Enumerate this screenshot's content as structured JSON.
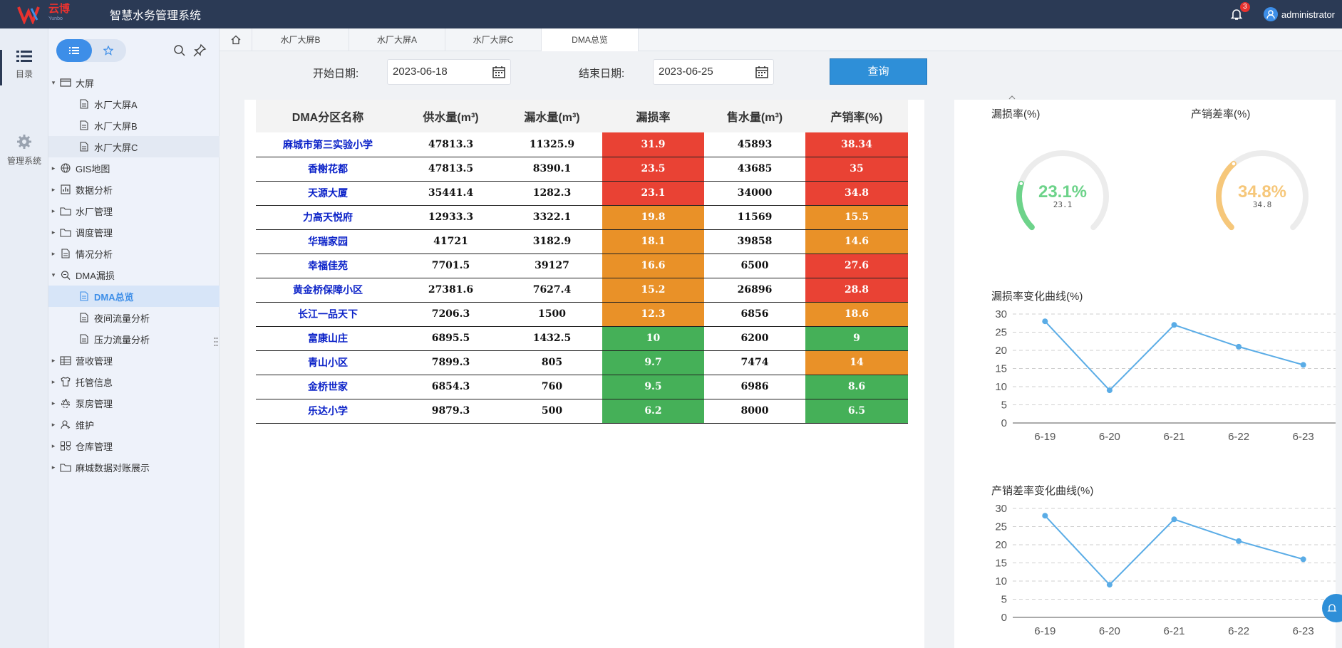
{
  "app": {
    "logo_text": "云博",
    "logo_sub": "Yunbo",
    "title": "智慧水务管理系统"
  },
  "topbar": {
    "notification_count": "3",
    "username": "administrator"
  },
  "rail": [
    {
      "label": "目录",
      "icon": "list-icon"
    },
    {
      "label": "管理系统",
      "icon": "gear-icon"
    }
  ],
  "sidebar": {
    "tree": [
      {
        "label": "大屏",
        "depth": 0,
        "caret": "▾",
        "icon": "screen-icon"
      },
      {
        "label": "水厂大屏A",
        "depth": 1,
        "caret": "",
        "icon": "doc-icon"
      },
      {
        "label": "水厂大屏B",
        "depth": 1,
        "caret": "",
        "icon": "doc-icon"
      },
      {
        "label": "水厂大屏C",
        "depth": 1,
        "caret": "",
        "icon": "doc-icon"
      },
      {
        "label": "GIS地图",
        "depth": 0,
        "caret": "▸",
        "icon": "globe-icon"
      },
      {
        "label": "数据分析",
        "depth": 0,
        "caret": "▸",
        "icon": "chart-icon"
      },
      {
        "label": "水厂管理",
        "depth": 0,
        "caret": "▸",
        "icon": "folder-icon"
      },
      {
        "label": "调度管理",
        "depth": 0,
        "caret": "▸",
        "icon": "folder-icon"
      },
      {
        "label": "情况分析",
        "depth": 0,
        "caret": "▸",
        "icon": "doc-icon"
      },
      {
        "label": "DMA漏损",
        "depth": 0,
        "caret": "▾",
        "icon": "search-doc-icon"
      },
      {
        "label": "DMA总览",
        "depth": 1,
        "caret": "",
        "icon": "doc-icon"
      },
      {
        "label": "夜间流量分析",
        "depth": 1,
        "caret": "",
        "icon": "doc-icon"
      },
      {
        "label": "压力流量分析",
        "depth": 1,
        "caret": "",
        "icon": "doc-icon"
      },
      {
        "label": "营收管理",
        "depth": 0,
        "caret": "▸",
        "icon": "table-icon"
      },
      {
        "label": "托管信息",
        "depth": 0,
        "caret": "▸",
        "icon": "shirt-icon"
      },
      {
        "label": "泵房管理",
        "depth": 0,
        "caret": "▸",
        "icon": "recycle-icon"
      },
      {
        "label": "维护",
        "depth": 0,
        "caret": "▸",
        "icon": "user-icon"
      },
      {
        "label": "仓库管理",
        "depth": 0,
        "caret": "▸",
        "icon": "grid-icon"
      },
      {
        "label": "麻城数据对账展示",
        "depth": 0,
        "caret": "▸",
        "icon": "folder-icon"
      }
    ]
  },
  "tabs": [
    "水厂大屏B",
    "水厂大屏A",
    "水厂大屏C",
    "DMA总览"
  ],
  "filter": {
    "start_label": "开始日期:",
    "start_value": "2023-06-18",
    "end_label": "结束日期:",
    "end_value": "2023-06-25",
    "query_label": "查询"
  },
  "table": {
    "headers": [
      "DMA分区名称",
      "供水量(m³)",
      "漏水量(m³)",
      "漏损率",
      "售水量(m³)",
      "产销率(%)"
    ],
    "rows": [
      [
        "麻城市第三实验小学",
        "47813.3",
        "11325.9",
        "31.9",
        "45893",
        "38.34"
      ],
      [
        "香榭花都",
        "47813.5",
        "8390.1",
        "23.5",
        "43685",
        "35"
      ],
      [
        "天源大厦",
        "35441.4",
        "1282.3",
        "23.1",
        "34000",
        "34.8"
      ],
      [
        "力高天悦府",
        "12933.3",
        "3322.1",
        "19.8",
        "11569",
        "15.5"
      ],
      [
        "华瑞家园",
        "41721",
        "3182.9",
        "18.1",
        "39858",
        "14.6"
      ],
      [
        "幸福佳苑",
        "7701.5",
        "39127",
        "16.6",
        "6500",
        "27.6"
      ],
      [
        "黄金桥保障小区",
        "27381.6",
        "7627.4",
        "15.2",
        "26896",
        "28.8"
      ],
      [
        "长江一品天下",
        "7206.3",
        "1500",
        "12.3",
        "6856",
        "18.6"
      ],
      [
        "富康山庄",
        "6895.5",
        "1432.5",
        "10",
        "6200",
        "9"
      ],
      [
        "青山小区",
        "7899.3",
        "805",
        "9.7",
        "7474",
        "14"
      ],
      [
        "金桥世家",
        "6854.3",
        "760",
        "9.5",
        "6986",
        "8.6"
      ],
      [
        "乐达小学",
        "9879.3",
        "500",
        "6.2",
        "8000",
        "6.5"
      ]
    ],
    "level_colors": {
      "high": "#e94234",
      "mid": "#e99128",
      "low": "#45b058"
    }
  },
  "gauges": [
    {
      "title": "漏损率(%)",
      "value": 23.1,
      "label": "23.1%",
      "sub": "23.1",
      "color": "#6dd38a",
      "max": 100
    },
    {
      "title": "产销差率(%)",
      "value": 34.8,
      "label": "34.8%",
      "sub": "34.8",
      "color": "#f6c77a",
      "max": 100
    }
  ],
  "chart_data": [
    {
      "type": "line",
      "title": "漏损率变化曲线(%)",
      "categories": [
        "6-19",
        "6-20",
        "6-21",
        "6-22",
        "6-23"
      ],
      "values": [
        28,
        9,
        27,
        21,
        16
      ],
      "ylim": [
        0,
        30
      ],
      "yticks": [
        0,
        5,
        10,
        15,
        20,
        25,
        30
      ],
      "color": "#5aace6",
      "grid": true
    },
    {
      "type": "line",
      "title": "产销差率变化曲线(%)",
      "categories": [
        "6-19",
        "6-20",
        "6-21",
        "6-22",
        "6-23"
      ],
      "values": [
        28,
        9,
        27,
        21,
        16
      ],
      "ylim": [
        0,
        30
      ],
      "yticks": [
        0,
        5,
        10,
        15,
        20,
        25,
        30
      ],
      "color": "#5aace6",
      "grid": true
    }
  ]
}
